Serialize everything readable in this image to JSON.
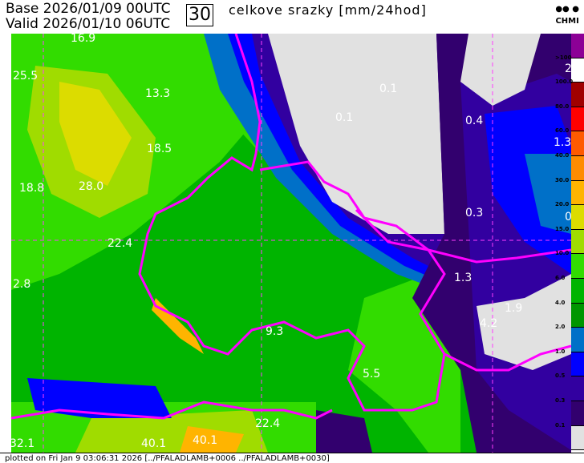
{
  "header": {
    "base": "Base 2026/01/09 00UTC",
    "valid": "Valid 2026/01/10 06UTC",
    "lead_hours": "30",
    "title": "celkove srazky [mm/24hod]",
    "logo": "CHMI"
  },
  "map_labels": [
    "16.9",
    "25.5",
    "13.3",
    "0.1",
    "0.1",
    "0.4",
    "18.5",
    "1.3",
    "18.8",
    "28.0",
    "0.3",
    "0",
    "22.4",
    "2.8",
    "1.3",
    "1.9",
    "4.2",
    "9.3",
    "5.5",
    "22.4",
    "32.1",
    "40.1",
    "40.1",
    "2"
  ],
  "legend": {
    "labels": [
      ">100",
      "100.0",
      "80.0",
      "60.0",
      "40.0",
      "30.0",
      "20.0",
      "15.0",
      "10.0",
      "6.0",
      "4.0",
      "2.0",
      "1.0",
      "0.5",
      "0.3",
      "0.1"
    ],
    "colors": [
      "#8c0096",
      "#ffffff",
      "#a00000",
      "#ff0000",
      "#ff5a00",
      "#ff8c00",
      "#ffb400",
      "#dcdc00",
      "#a0dc00",
      "#32dc00",
      "#00b400",
      "#009600",
      "#0070c8",
      "#0000ff",
      "#3200a0",
      "#32006e",
      "#e1e1e1"
    ]
  },
  "footer": "plotted on Fri Jan  9 03:06:31 2026 [../PFALADLAMB+0006 ../PFALADLAMB+0030]"
}
